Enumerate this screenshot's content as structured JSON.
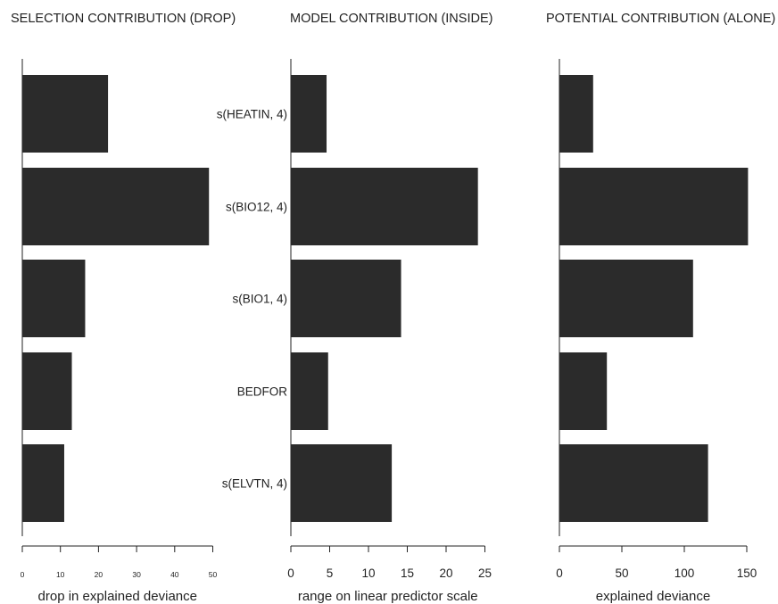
{
  "chart_data": [
    {
      "type": "bar",
      "orientation": "horizontal",
      "title": "SELECTION CONTRIBUTION (DROP)",
      "xlabel": "drop in explained deviance",
      "categories": [
        "s(HEATIN, 4)",
        "s(BIO12, 4)",
        "s(BIO1, 4)",
        "BEDFOR",
        "s(ELVTN, 4)"
      ],
      "values": [
        22.5,
        49,
        16.5,
        13,
        11
      ],
      "xlim": [
        0,
        50
      ],
      "xticks": [
        0,
        10,
        20,
        30,
        40,
        50
      ],
      "xtick_labels": [
        "0",
        "10",
        "20",
        "30",
        "40",
        "50"
      ]
    },
    {
      "type": "bar",
      "orientation": "horizontal",
      "title": "MODEL CONTRIBUTION (INSIDE)",
      "xlabel": "range on linear predictor scale",
      "categories": [
        "s(HEATIN, 4)",
        "s(BIO12, 4)",
        "s(BIO1, 4)",
        "BEDFOR",
        "s(ELVTN, 4)"
      ],
      "category_labels": [
        "s(HEATIN, 4)",
        "s(BIO12, 4)",
        "s(BIO1, 4)",
        "BEDFOR",
        "s(ELVTN, 4)"
      ],
      "values": [
        4.6,
        24.1,
        14.2,
        4.8,
        13.0
      ],
      "xlim": [
        0,
        25
      ],
      "xticks": [
        0,
        5,
        10,
        15,
        20,
        25
      ],
      "xtick_labels": [
        "0",
        "5",
        "10",
        "15",
        "20",
        "25"
      ]
    },
    {
      "type": "bar",
      "orientation": "horizontal",
      "title": "POTENTIAL CONTRIBUTION (ALONE)",
      "xlabel": "explained deviance",
      "categories": [
        "s(HEATIN, 4)",
        "s(BIO12, 4)",
        "s(BIO1, 4)",
        "BEDFOR",
        "s(ELVTN, 4)"
      ],
      "values": [
        27,
        151,
        107,
        38,
        119
      ],
      "xlim": [
        0,
        150
      ],
      "xticks": [
        0,
        50,
        100,
        150
      ],
      "xtick_labels": [
        "0",
        "50",
        "100",
        "150"
      ]
    }
  ],
  "style": {
    "bar_color": "#2b2b2b",
    "axis_color": "#222222",
    "grid": false
  }
}
